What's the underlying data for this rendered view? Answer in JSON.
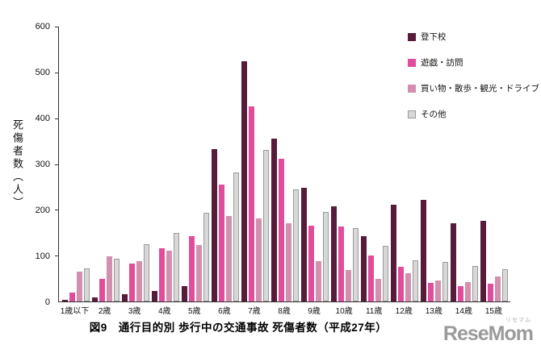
{
  "figure": {
    "caption": "図9　通行目的別 歩行中の交通事故 死傷者数（平成27年）",
    "watermark": {
      "brand": "ReseMom",
      "ruby": "リセマム"
    }
  },
  "chart_data": {
    "type": "bar",
    "title": "図9　通行目的別 歩行中の交通事故 死傷者数（平成27年）",
    "ylabel": "死傷者数（人）",
    "xlabel": "",
    "ylim": [
      0,
      600
    ],
    "yticks": [
      0,
      100,
      200,
      300,
      400,
      500,
      600
    ],
    "grid": false,
    "legend_position": "top-right",
    "plot_background": "#ffffff",
    "categories": [
      "1歳以下",
      "2歳",
      "3歳",
      "4歳",
      "5歳",
      "6歳",
      "7歳",
      "8歳",
      "9歳",
      "10歳",
      "11歳",
      "12歳",
      "13歳",
      "14歳",
      "15歳"
    ],
    "series": [
      {
        "name": "登下校",
        "color": "#571c39",
        "values": [
          3,
          8,
          15,
          23,
          33,
          332,
          525,
          355,
          248,
          207,
          143,
          211,
          222,
          170,
          176
        ]
      },
      {
        "name": "遊戯・訪問",
        "color": "#e04e9b",
        "values": [
          20,
          50,
          83,
          117,
          142,
          256,
          425,
          312,
          165,
          163,
          100,
          75,
          40,
          33,
          38
        ]
      },
      {
        "name": "買い物・散歩・観光・ドライブ",
        "color": "#d38fae",
        "values": [
          65,
          98,
          88,
          110,
          123,
          186,
          182,
          171,
          88,
          68,
          50,
          62,
          45,
          42,
          55
        ]
      },
      {
        "name": "その他",
        "color": "#d8d8d8",
        "border": "#9a9a9a",
        "values": [
          73,
          93,
          125,
          150,
          193,
          281,
          330,
          245,
          195,
          160,
          122,
          90,
          87,
          78,
          70
        ]
      }
    ]
  }
}
